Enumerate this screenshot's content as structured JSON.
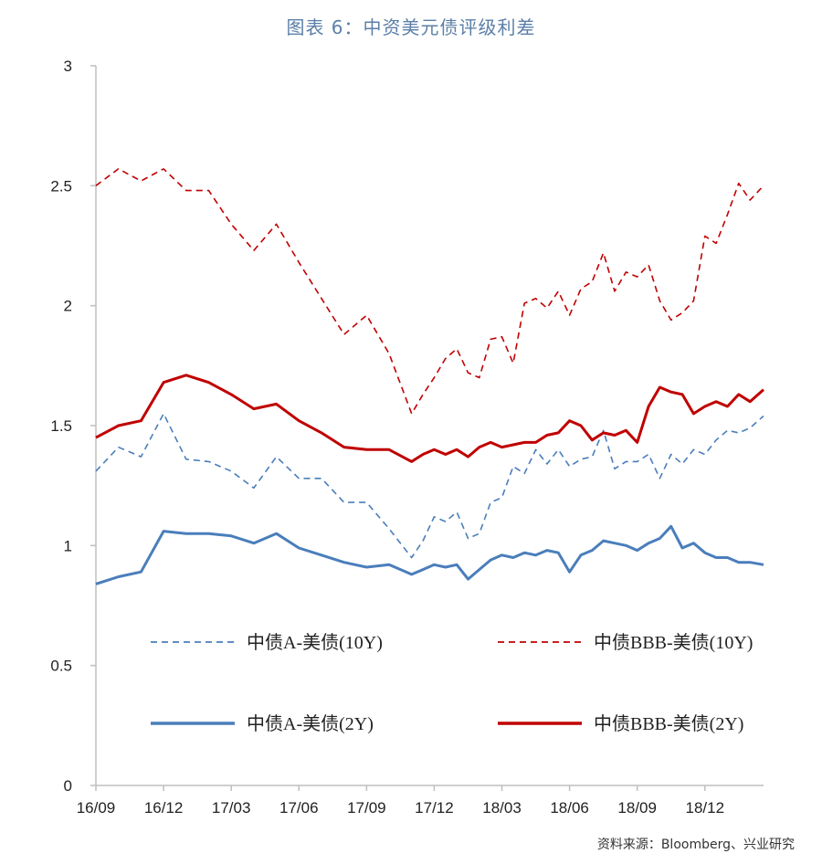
{
  "title": "图表 6：中资美元债评级利差",
  "source": "资料来源：Bloomberg、兴业研究",
  "colors": {
    "blue": "#4a7ebb",
    "red": "#c00000",
    "axis": "#bfbfbf",
    "title": "#5b7fa8"
  },
  "chart_data": {
    "type": "line",
    "title": "图表 6：中资美元债评级利差",
    "xlabel": "",
    "ylabel": "",
    "ylim": [
      0,
      3
    ],
    "yticks": [
      0,
      0.5,
      1,
      1.5,
      2,
      2.5,
      3
    ],
    "yticklabels": [
      "0",
      "0.5",
      "1",
      "1.5",
      "2",
      "2.5",
      "3"
    ],
    "xticks": [
      "16/09",
      "16/12",
      "17/03",
      "17/06",
      "17/09",
      "17/12",
      "18/03",
      "18/06",
      "18/09",
      "18/12"
    ],
    "x_range_months": [
      0,
      29.6
    ],
    "grid": false,
    "legend": "inside-bottom",
    "series": [
      {
        "name": "中债A-美债(10Y)",
        "style": "dashed",
        "color": "#4a7ebb",
        "x": [
          0,
          1,
          2,
          3,
          4,
          5,
          6,
          7,
          8,
          9,
          10,
          11,
          12,
          13,
          14,
          14.5,
          15,
          15.5,
          16,
          16.5,
          17,
          17.5,
          18,
          18.5,
          19,
          19.5,
          20,
          20.5,
          21,
          21.5,
          22,
          22.5,
          23,
          23.5,
          24,
          24.5,
          25,
          25.5,
          26,
          26.5,
          27,
          27.5,
          28,
          28.5,
          29,
          29.6
        ],
        "values": [
          1.31,
          1.41,
          1.37,
          1.55,
          1.36,
          1.35,
          1.31,
          1.24,
          1.37,
          1.28,
          1.28,
          1.18,
          1.18,
          1.07,
          0.95,
          1.02,
          1.12,
          1.1,
          1.14,
          1.03,
          1.05,
          1.18,
          1.2,
          1.33,
          1.3,
          1.4,
          1.34,
          1.4,
          1.33,
          1.36,
          1.37,
          1.48,
          1.32,
          1.35,
          1.35,
          1.38,
          1.28,
          1.38,
          1.34,
          1.4,
          1.38,
          1.44,
          1.48,
          1.47,
          1.49,
          1.54
        ]
      },
      {
        "name": "中债BBB-美债(10Y)",
        "style": "dashed",
        "color": "#c00000",
        "x": [
          0,
          1,
          2,
          3,
          4,
          5,
          6,
          7,
          8,
          9,
          10,
          11,
          12,
          13,
          14,
          14.5,
          15,
          15.5,
          16,
          16.5,
          17,
          17.5,
          18,
          18.5,
          19,
          19.5,
          20,
          20.5,
          21,
          21.5,
          22,
          22.5,
          23,
          23.5,
          24,
          24.5,
          25,
          25.5,
          26,
          26.5,
          27,
          27.5,
          28,
          28.5,
          29,
          29.6
        ],
        "values": [
          2.5,
          2.57,
          2.52,
          2.57,
          2.48,
          2.48,
          2.34,
          2.23,
          2.34,
          2.18,
          2.03,
          1.88,
          1.96,
          1.8,
          1.55,
          1.63,
          1.7,
          1.78,
          1.82,
          1.72,
          1.7,
          1.86,
          1.87,
          1.76,
          2.01,
          2.03,
          1.99,
          2.06,
          1.96,
          2.07,
          2.1,
          2.22,
          2.06,
          2.14,
          2.12,
          2.17,
          2.02,
          1.94,
          1.97,
          2.02,
          2.29,
          2.26,
          2.38,
          2.51,
          2.44,
          2.5
        ]
      },
      {
        "name": "中债A-美债(2Y)",
        "style": "solid",
        "color": "#4a7ebb",
        "x": [
          0,
          1,
          2,
          3,
          4,
          5,
          6,
          7,
          8,
          9,
          10,
          11,
          12,
          13,
          14,
          14.5,
          15,
          15.5,
          16,
          16.5,
          17,
          17.5,
          18,
          18.5,
          19,
          19.5,
          20,
          20.5,
          21,
          21.5,
          22,
          22.5,
          23,
          23.5,
          24,
          24.5,
          25,
          25.5,
          26,
          26.5,
          27,
          27.5,
          28,
          28.5,
          29,
          29.6
        ],
        "values": [
          0.84,
          0.87,
          0.89,
          1.06,
          1.05,
          1.05,
          1.04,
          1.01,
          1.05,
          0.99,
          0.96,
          0.93,
          0.91,
          0.92,
          0.88,
          0.9,
          0.92,
          0.91,
          0.92,
          0.86,
          0.9,
          0.94,
          0.96,
          0.95,
          0.97,
          0.96,
          0.98,
          0.97,
          0.89,
          0.96,
          0.98,
          1.02,
          1.01,
          1.0,
          0.98,
          1.01,
          1.03,
          1.08,
          0.99,
          1.01,
          0.97,
          0.95,
          0.95,
          0.93,
          0.93,
          0.92
        ]
      },
      {
        "name": "中债BBB-美债(2Y)",
        "style": "solid",
        "color": "#c00000",
        "x": [
          0,
          1,
          2,
          3,
          4,
          5,
          6,
          7,
          8,
          9,
          10,
          11,
          12,
          13,
          14,
          14.5,
          15,
          15.5,
          16,
          16.5,
          17,
          17.5,
          18,
          18.5,
          19,
          19.5,
          20,
          20.5,
          21,
          21.5,
          22,
          22.5,
          23,
          23.5,
          24,
          24.5,
          25,
          25.5,
          26,
          26.5,
          27,
          27.5,
          28,
          28.5,
          29,
          29.6
        ],
        "values": [
          1.45,
          1.5,
          1.52,
          1.68,
          1.71,
          1.68,
          1.63,
          1.57,
          1.59,
          1.52,
          1.47,
          1.41,
          1.4,
          1.4,
          1.35,
          1.38,
          1.4,
          1.38,
          1.4,
          1.37,
          1.41,
          1.43,
          1.41,
          1.42,
          1.43,
          1.43,
          1.46,
          1.47,
          1.52,
          1.5,
          1.44,
          1.47,
          1.46,
          1.48,
          1.43,
          1.58,
          1.66,
          1.64,
          1.63,
          1.55,
          1.58,
          1.6,
          1.58,
          1.63,
          1.6,
          1.65
        ]
      }
    ]
  }
}
